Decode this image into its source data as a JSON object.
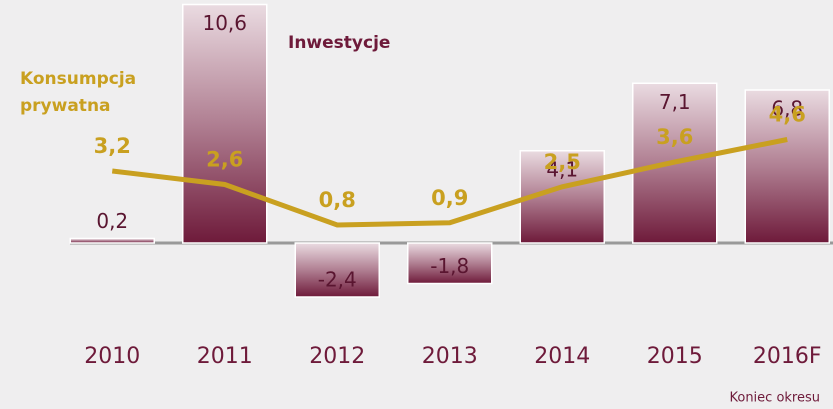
{
  "chart_data": {
    "type": "bar_line",
    "categories": [
      "2010",
      "2011",
      "2012",
      "2013",
      "2014",
      "2015",
      "2016F"
    ],
    "series": [
      {
        "name": "Inwestycje",
        "type": "bar",
        "color": "#6e1a3a",
        "values": [
          0.2,
          10.6,
          -2.4,
          -1.8,
          4.1,
          7.1,
          6.8
        ],
        "value_labels": [
          "0,2",
          "10,6",
          "-2,4",
          "-1,8",
          "4,1",
          "7,1",
          "6,8"
        ]
      },
      {
        "name": "Konsumpcja prywatna",
        "type": "line",
        "color": "#c9a020",
        "values": [
          3.2,
          2.6,
          0.8,
          0.9,
          2.5,
          3.6,
          4.6
        ],
        "value_labels": [
          "3,2",
          "2,6",
          "0,8",
          "0,9",
          "2,5",
          "3,6",
          "4,6"
        ]
      }
    ],
    "ylim": [
      -4,
      11
    ],
    "note": "Koniec okresu"
  }
}
